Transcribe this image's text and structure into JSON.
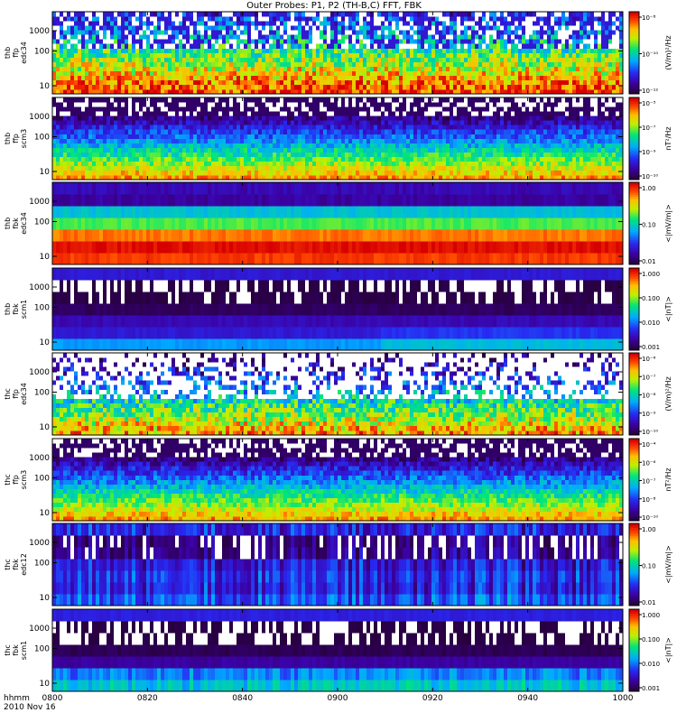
{
  "chart_data": {
    "type": "heatmap",
    "title": "Outer Probes: P1, P2 (TH-B,C) FFT, FBK",
    "x_tick_labels": [
      "0800",
      "0820",
      "0840",
      "0900",
      "0920",
      "0940",
      "1000"
    ],
    "x_label_lines": [
      "hhmm",
      "2010 Nov 16"
    ],
    "y_tick_labels": [
      "10",
      "100",
      "1000"
    ],
    "y_scale": "log",
    "panels": [
      {
        "ylabel": [
          "thb",
          "ffp",
          "edc34"
        ],
        "cbar_ticks": [
          "10⁻⁸",
          "10⁻¹⁰",
          "10⁻¹²"
        ],
        "cbar_label": "(V/m)²/Hz",
        "style": "fft_e",
        "seed": 11
      },
      {
        "ylabel": [
          "thb",
          "ffp",
          "scm3"
        ],
        "cbar_ticks": [
          "10⁻⁵",
          "10⁻⁷",
          "10⁻⁹",
          "10⁻¹⁰"
        ],
        "cbar_label": "nT²/Hz",
        "style": "fft_b",
        "seed": 23
      },
      {
        "ylabel": [
          "thb",
          "fbk",
          "edc34"
        ],
        "cbar_ticks": [
          "1.00",
          "0.10",
          "0.01"
        ],
        "cbar_label": "<|mV/m|>",
        "style": "fbk_e_b",
        "seed": 37
      },
      {
        "ylabel": [
          "thb",
          "fbk",
          "scm1"
        ],
        "cbar_ticks": [
          "1.000",
          "0.100",
          "0.010",
          "0.001"
        ],
        "cbar_label": "<|nT|>",
        "style": "fbk_b_b",
        "seed": 41
      },
      {
        "ylabel": [
          "thc",
          "ffp",
          "edc34"
        ],
        "cbar_ticks": [
          "10⁻⁶",
          "10⁻⁷",
          "10⁻⁸",
          "10⁻⁹",
          "10⁻¹⁰"
        ],
        "cbar_label": "(V/m)²/Hz",
        "style": "fft_e2",
        "seed": 53
      },
      {
        "ylabel": [
          "thc",
          "ffp",
          "scm3"
        ],
        "cbar_ticks": [
          "10⁻⁴",
          "10⁻⁶",
          "10⁻⁷",
          "10⁻⁸",
          "10⁻¹⁰"
        ],
        "cbar_label": "nT²/Hz",
        "style": "fft_b",
        "seed": 67
      },
      {
        "ylabel": [
          "thc",
          "fbk",
          "edc12"
        ],
        "cbar_ticks": [
          "1.00",
          "0.10",
          "0.01"
        ],
        "cbar_label": "<|mV/m|>",
        "style": "fbk_e_c",
        "seed": 71
      },
      {
        "ylabel": [
          "thc",
          "fbk",
          "scm1"
        ],
        "cbar_ticks": [
          "1.000",
          "0.100",
          "0.010",
          "0.001"
        ],
        "cbar_label": "<|nT|>",
        "style": "fbk_b_c",
        "seed": 83
      }
    ]
  }
}
